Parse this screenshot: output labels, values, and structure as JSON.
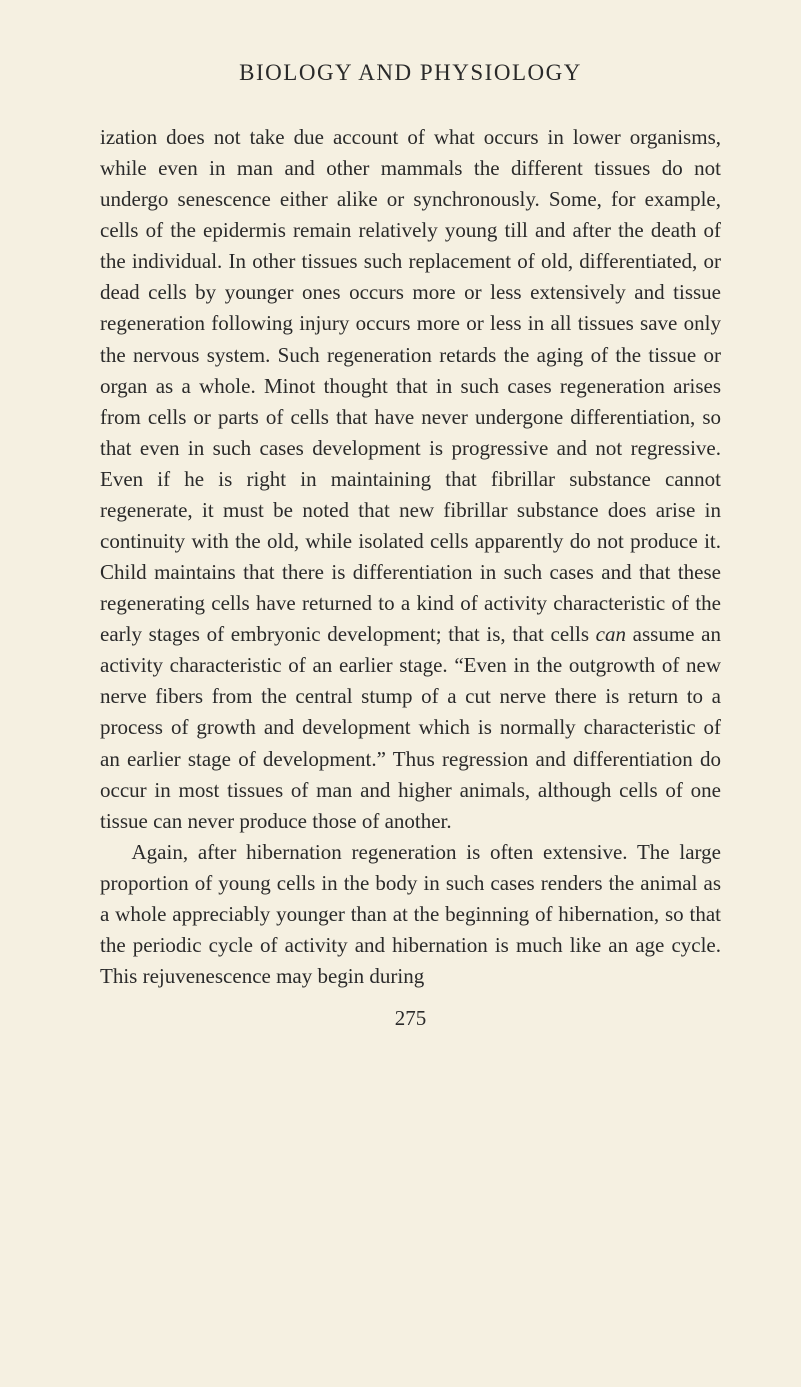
{
  "page": {
    "header": "BIOLOGY AND PHYSIOLOGY",
    "paragraph1_part1": "ization does not take due account of what occurs in lower organisms, while even in man and other mammals the different tissues do not undergo senescence either alike or synchronously. Some, for example, cells of the epidermis remain relatively young till and after the death of the individual. In other tissues such replace­ment of old, differentiated, or dead cells by younger ones occurs more or less extensively and tissue regeneration following injury occurs more or less in all tissues save only the nervous system. Such regeneration retards the aging of the tissue or organ as a whole. Minot thought that in such cases regeneration arises from cells or parts of cells that have never undergone differentiation, so that even in such cases development is progressive and not regressive. Even if he is right in maintaining that fibrillar substance cannot regenerate, it must be noted that new fibrillar substance does arise in continuity with the old, while isolated cells apparently do not produce it. Child maintains that there is differentiation in such cases and that these regenerating cells have returned to a kind of activity characteristic of the early stages of embryonic development; that is, that cells ",
    "paragraph1_italic": "can",
    "paragraph1_part2": " assume an activity characteristic of an earlier stage. “Even in the outgrowth of new nerve fibers from the central stump of a cut nerve there is return to a process of growth and development which is normally characteristic of an earlier stage of development.” Thus regression and differentiation do occur in most tissues of man and higher animals, although cells of one tissue can never produce those of another.",
    "paragraph2": "Again, after hibernation regeneration is often exten­sive. The large proportion of young cells in the body in such cases renders the animal as a whole appreciably younger than at the beginning of hibernation, so that the periodic cycle of activity and hibernation is much like an age cycle. This rejuvenescence may begin during",
    "page_number": "275"
  },
  "style": {
    "background_color": "#f5f0e1",
    "text_color": "#2a2a2a",
    "header_fontsize": 23,
    "body_fontsize": 21,
    "line_height": 1.48,
    "font_family": "Georgia, Times New Roman, serif"
  }
}
